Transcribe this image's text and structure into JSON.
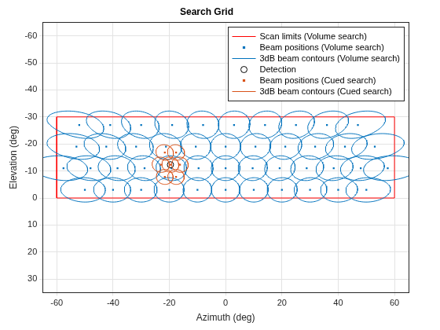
{
  "chart_data": {
    "type": "scatter",
    "title": "Search Grid",
    "x_label": "Azimuth (deg)",
    "y_label": "Elevation (deg)",
    "xlim": [
      -65,
      65
    ],
    "xticks": [
      -60,
      -40,
      -20,
      0,
      20,
      40,
      60
    ],
    "ylim": [
      35,
      -65
    ],
    "yticks": [
      -60,
      -50,
      -40,
      -30,
      -20,
      -10,
      0,
      10,
      20,
      30
    ],
    "grid": true,
    "legend": "top-right",
    "series": [
      {
        "name": "Scan limits (Volume search)",
        "type": "line",
        "line_style": "solid",
        "color": "#ff0000",
        "x": [
          -60,
          60,
          60,
          -60,
          -60
        ],
        "y": [
          0,
          0,
          -30,
          -30,
          0
        ]
      },
      {
        "name": "Beam positions (Volume search)",
        "type": "scatter",
        "marker": "square",
        "color": "#0072bd",
        "x": [
          -50,
          -40,
          -30,
          -20,
          -10,
          0,
          10,
          20,
          30,
          40,
          50,
          -57.6,
          -48,
          -38.4,
          -28.8,
          -19.2,
          -9.6,
          0,
          9.6,
          19.2,
          28.8,
          38.4,
          48,
          57.6,
          -53,
          -42.4,
          -31.8,
          -21.2,
          -10.6,
          0,
          10.6,
          21.2,
          31.8,
          42.4,
          53,
          -52,
          -41,
          -30,
          -19,
          -8,
          3,
          14,
          25,
          36,
          47
        ],
        "y": [
          -3,
          -3,
          -3,
          -3,
          -3,
          -3,
          -3,
          -3,
          -3,
          -3,
          -3,
          -11,
          -11,
          -11,
          -11,
          -11,
          -11,
          -11,
          -11,
          -11,
          -11,
          -11,
          -11,
          -11,
          -19,
          -19,
          -19,
          -19,
          -19,
          -19,
          -19,
          -19,
          -19,
          -19,
          -19,
          -27,
          -27,
          -27,
          -27,
          -27,
          -27,
          -27,
          -27,
          -27,
          -27
        ]
      },
      {
        "name": "3dB beam contours (Volume search)",
        "type": "contour",
        "line_style": "solid",
        "color": "#0072bd",
        "beamwidth": {
          "az": 10,
          "el": 9
        }
      },
      {
        "name": "Detection",
        "type": "scatter",
        "marker": "circle",
        "color": "#000000",
        "x": [
          -19.6
        ],
        "y": [
          -12.3
        ]
      },
      {
        "name": "Beam positions (Cued search)",
        "type": "scatter",
        "marker": "square",
        "color": "#d95319",
        "x": [
          -19.6,
          -21.6,
          -17.6,
          -23,
          -16.2,
          -21.6,
          -17.6
        ],
        "y": [
          -12.3,
          -16.8,
          -16.8,
          -12.3,
          -12.3,
          -7.8,
          -7.8
        ]
      },
      {
        "name": "3dB beam contours (Cued search)",
        "type": "contour",
        "line_style": "solid",
        "color": "#d95319",
        "beamwidth": {
          "az": 5.5,
          "el": 5.5
        }
      }
    ]
  }
}
